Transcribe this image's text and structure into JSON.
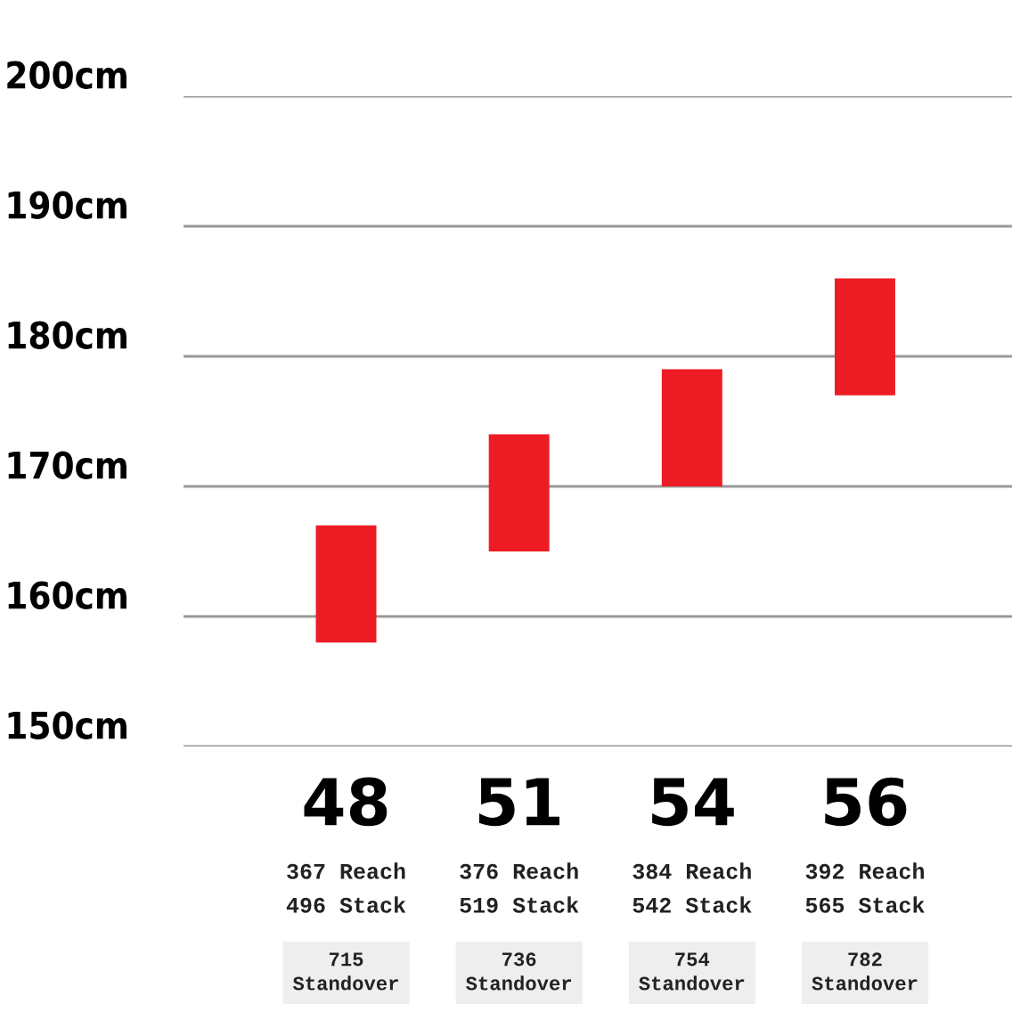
{
  "chart_data": {
    "type": "bar",
    "categories": [
      "48",
      "51",
      "54",
      "56"
    ],
    "base": [
      158,
      165,
      170,
      177
    ],
    "values": [
      9,
      9,
      9,
      9
    ],
    "color": "#ed1c24",
    "ylim": [
      150,
      200
    ],
    "yticks": [
      {
        "value": 150,
        "label": "150cm"
      },
      {
        "value": 160,
        "label": "160cm"
      },
      {
        "value": 170,
        "label": "170cm"
      },
      {
        "value": 180,
        "label": "180cm"
      },
      {
        "value": 190,
        "label": "190cm"
      },
      {
        "value": 200,
        "label": "200cm"
      }
    ],
    "grid": "y",
    "annotations": [
      "367 Reach",
      "496 Stack",
      "715\nStandover",
      "376 Reach",
      "519 Stack",
      "736\nStandover",
      "384 Reach",
      "542 Stack",
      "754\nStandover",
      "392 Reach",
      "565 Stack",
      "782\nStandover"
    ]
  }
}
